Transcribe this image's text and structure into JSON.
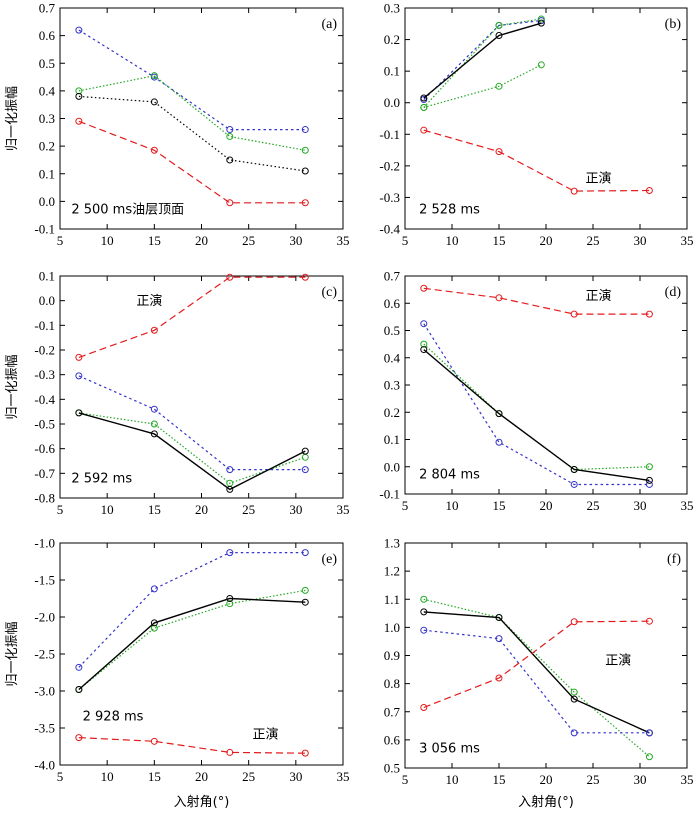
{
  "chart_data": [
    {
      "type": "line",
      "panel_label": "(a)",
      "annotation": "2 500 ms油层顶面",
      "ylabel": "归一化振幅",
      "xlabel": "",
      "xlim": [
        5,
        35
      ],
      "ylim": [
        -0.1,
        0.7
      ],
      "xticks": [
        5,
        10,
        15,
        20,
        25,
        30,
        35
      ],
      "yticks": [
        -0.1,
        0.0,
        0.1,
        0.2,
        0.3,
        0.4,
        0.5,
        0.6,
        0.7
      ],
      "ytick_labels": [
        "-0.1",
        "0.0",
        "0.1",
        "0.2",
        "0.3",
        "0.4",
        "0.5",
        "0.6",
        "0.7"
      ],
      "series": [
        {
          "color": "#3333cc",
          "style": "dotted-blue",
          "x": [
            7,
            15,
            23,
            31
          ],
          "y": [
            0.62,
            0.45,
            0.26,
            0.26
          ]
        },
        {
          "color": "#22aa22",
          "style": "dotted-green",
          "x": [
            7,
            15,
            23,
            31
          ],
          "y": [
            0.4,
            0.455,
            0.235,
            0.185
          ]
        },
        {
          "color": "#000000",
          "style": "dotted-black",
          "x": [
            7,
            15,
            23,
            31
          ],
          "y": [
            0.38,
            0.36,
            0.15,
            0.11
          ]
        },
        {
          "color": "#e41a1c",
          "style": "dashed-red",
          "x": [
            7,
            15,
            23,
            31
          ],
          "y": [
            0.29,
            0.185,
            -0.005,
            -0.005
          ]
        }
      ]
    },
    {
      "type": "line",
      "panel_label": "(b)",
      "annotation": "2 528 ms",
      "annotation2": "正演",
      "ylabel": "",
      "xlabel": "",
      "xlim": [
        5,
        35
      ],
      "ylim": [
        -0.4,
        0.3
      ],
      "xticks": [
        5,
        10,
        15,
        20,
        25,
        30,
        35
      ],
      "yticks": [
        -0.4,
        -0.3,
        -0.2,
        -0.1,
        0.0,
        0.1,
        0.2,
        0.3
      ],
      "ytick_labels": [
        "-0.4",
        "-0.3",
        "-0.2",
        "-0.1",
        "0.0",
        "0.1",
        "0.2",
        "0.3"
      ],
      "series": [
        {
          "color": "#3333cc",
          "style": "dotted-blue",
          "x": [
            7,
            15,
            19.5
          ],
          "y": [
            0.01,
            0.245,
            0.26
          ]
        },
        {
          "color": "#22aa22",
          "style": "dotted-green",
          "x": [
            7,
            15,
            19.5
          ],
          "y": [
            -0.015,
            0.245,
            0.265
          ]
        },
        {
          "color": "#000000",
          "style": "solid-black",
          "x": [
            7,
            15,
            19.5
          ],
          "y": [
            0.015,
            0.213,
            0.252
          ]
        },
        {
          "color": "#22aa22",
          "style": "dotted-green-b",
          "x": [
            7,
            15,
            19.5
          ],
          "y": [
            -0.015,
            0.052,
            0.12
          ]
        },
        {
          "color": "#e41a1c",
          "style": "dashed-red",
          "x": [
            7,
            15,
            23,
            31
          ],
          "y": [
            -0.087,
            -0.155,
            -0.28,
            -0.278
          ]
        }
      ]
    },
    {
      "type": "line",
      "panel_label": "(c)",
      "annotation": "2 592 ms",
      "annotation2": "正演",
      "ylabel": "归一化振幅",
      "xlabel": "",
      "xlim": [
        5,
        35
      ],
      "ylim": [
        -0.8,
        0.1
      ],
      "xticks": [
        5,
        10,
        15,
        20,
        25,
        30,
        35
      ],
      "yticks": [
        -0.8,
        -0.7,
        -0.6,
        -0.5,
        -0.4,
        -0.3,
        -0.2,
        -0.1,
        0.0,
        0.1
      ],
      "ytick_labels": [
        "-0.8",
        "-0.7",
        "-0.6",
        "-0.5",
        "-0.4",
        "-0.3",
        "-0.2",
        "-0.1",
        "0.0",
        "0.1"
      ],
      "series": [
        {
          "color": "#e41a1c",
          "style": "dashed-red",
          "x": [
            7,
            15,
            23,
            31
          ],
          "y": [
            -0.23,
            -0.12,
            0.095,
            0.095
          ]
        },
        {
          "color": "#3333cc",
          "style": "dotted-blue",
          "x": [
            7,
            15,
            23,
            31
          ],
          "y": [
            -0.305,
            -0.44,
            -0.685,
            -0.685
          ]
        },
        {
          "color": "#22aa22",
          "style": "dotted-green",
          "x": [
            7,
            15,
            23,
            31
          ],
          "y": [
            -0.455,
            -0.5,
            -0.74,
            -0.635
          ]
        },
        {
          "color": "#000000",
          "style": "solid-black",
          "x": [
            7,
            15,
            23,
            31
          ],
          "y": [
            -0.455,
            -0.54,
            -0.765,
            -0.61
          ]
        }
      ]
    },
    {
      "type": "line",
      "panel_label": "(d)",
      "annotation": "2 804 ms",
      "annotation2": "正演",
      "ylabel": "",
      "xlabel": "",
      "xlim": [
        5,
        35
      ],
      "ylim": [
        -0.1,
        0.7
      ],
      "xticks": [
        5,
        10,
        15,
        20,
        25,
        30,
        35
      ],
      "yticks": [
        -0.1,
        0.0,
        0.1,
        0.2,
        0.3,
        0.4,
        0.5,
        0.6,
        0.7
      ],
      "ytick_labels": [
        "-0.1",
        "0.0",
        "0.1",
        "0.2",
        "0.3",
        "0.4",
        "0.5",
        "0.6",
        "0.7"
      ],
      "series": [
        {
          "color": "#e41a1c",
          "style": "dashed-red",
          "x": [
            7,
            15,
            23,
            31
          ],
          "y": [
            0.655,
            0.62,
            0.56,
            0.56
          ]
        },
        {
          "color": "#3333cc",
          "style": "dotted-blue",
          "x": [
            7,
            15,
            23,
            31
          ],
          "y": [
            0.525,
            0.09,
            -0.065,
            -0.065
          ]
        },
        {
          "color": "#22aa22",
          "style": "dotted-green",
          "x": [
            7,
            15,
            23,
            31
          ],
          "y": [
            0.45,
            0.195,
            -0.01,
            0.0
          ]
        },
        {
          "color": "#000000",
          "style": "solid-black",
          "x": [
            7,
            15,
            23,
            31
          ],
          "y": [
            0.43,
            0.195,
            -0.01,
            -0.05
          ]
        }
      ]
    },
    {
      "type": "line",
      "panel_label": "(e)",
      "annotation": "2 928 ms",
      "annotation2": "正演",
      "ylabel": "归一化振幅",
      "xlabel": "入射角(°)",
      "xlim": [
        5,
        35
      ],
      "ylim": [
        -4.0,
        -1.0
      ],
      "xticks": [
        5,
        10,
        15,
        20,
        25,
        30,
        35
      ],
      "yticks": [
        -4.0,
        -3.5,
        -3.0,
        -2.5,
        -2.0,
        -1.5,
        -1.0
      ],
      "ytick_labels": [
        "-4.0",
        "-3.5",
        "-3.0",
        "-2.5",
        "-2.0",
        "-1.5",
        "-1.0"
      ],
      "series": [
        {
          "color": "#3333cc",
          "style": "dotted-blue",
          "x": [
            7,
            15,
            23,
            31
          ],
          "y": [
            -2.68,
            -1.62,
            -1.13,
            -1.13
          ]
        },
        {
          "color": "#22aa22",
          "style": "dotted-green",
          "x": [
            7,
            15,
            23,
            31
          ],
          "y": [
            -2.98,
            -2.15,
            -1.82,
            -1.64
          ]
        },
        {
          "color": "#000000",
          "style": "solid-black",
          "x": [
            7,
            15,
            23,
            31
          ],
          "y": [
            -2.98,
            -2.08,
            -1.75,
            -1.8
          ]
        },
        {
          "color": "#e41a1c",
          "style": "dashed-red",
          "x": [
            7,
            15,
            23,
            31
          ],
          "y": [
            -3.63,
            -3.68,
            -3.83,
            -3.84
          ]
        }
      ]
    },
    {
      "type": "line",
      "panel_label": "(f)",
      "annotation": "3 056 ms",
      "annotation2": "正演",
      "ylabel": "",
      "xlabel": "入射角(°)",
      "xlim": [
        5,
        35
      ],
      "ylim": [
        0.5,
        1.3
      ],
      "xticks": [
        5,
        10,
        15,
        20,
        25,
        30,
        35
      ],
      "yticks": [
        0.5,
        0.6,
        0.7,
        0.8,
        0.9,
        1.0,
        1.1,
        1.2,
        1.3
      ],
      "ytick_labels": [
        "0.5",
        "0.6",
        "0.7",
        "0.8",
        "0.9",
        "1.0",
        "1.1",
        "1.2",
        "1.3"
      ],
      "series": [
        {
          "color": "#22aa22",
          "style": "dotted-green",
          "x": [
            7,
            15,
            23,
            31
          ],
          "y": [
            1.1,
            1.035,
            0.77,
            0.54
          ]
        },
        {
          "color": "#000000",
          "style": "solid-black",
          "x": [
            7,
            15,
            23,
            31
          ],
          "y": [
            1.055,
            1.035,
            0.745,
            0.625
          ]
        },
        {
          "color": "#3333cc",
          "style": "dotted-blue",
          "x": [
            7,
            15,
            23,
            31
          ],
          "y": [
            0.99,
            0.96,
            0.625,
            0.625
          ]
        },
        {
          "color": "#e41a1c",
          "style": "dashed-red",
          "x": [
            7,
            15,
            23,
            31
          ],
          "y": [
            0.715,
            0.82,
            1.02,
            1.022
          ]
        }
      ]
    }
  ]
}
